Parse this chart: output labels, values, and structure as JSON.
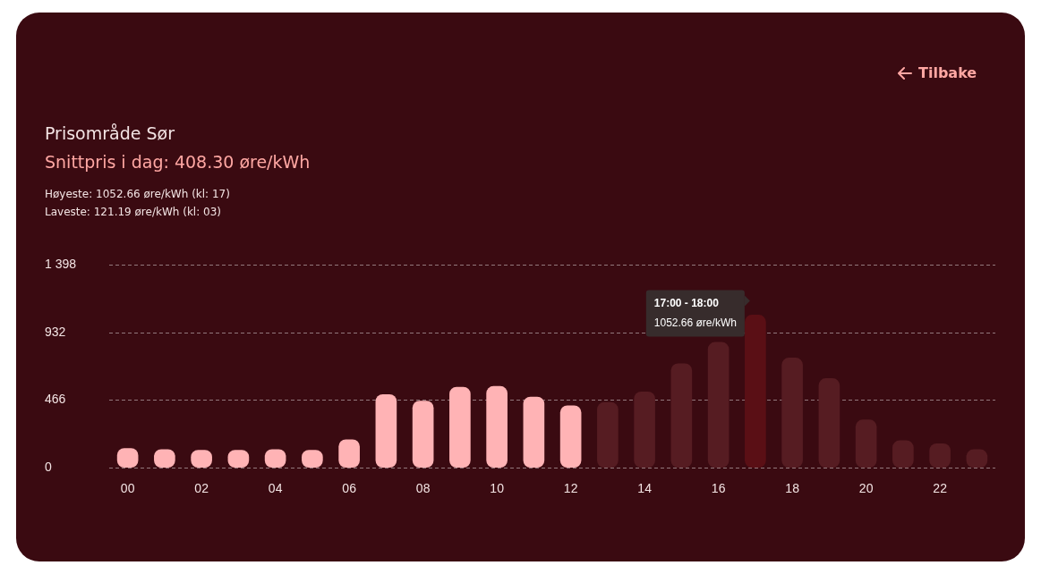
{
  "chart_data": {
    "type": "bar",
    "title": "Prisområde Sør",
    "subtitle": "Snittpris i dag: 408.30 øre/kWh",
    "categories": [
      "00",
      null,
      "02",
      null,
      "04",
      null,
      "06",
      null,
      "08",
      null,
      "10",
      null,
      "12",
      null,
      "14",
      null,
      "16",
      null,
      "18",
      null,
      "20",
      null,
      "22",
      null
    ],
    "values": [
      134,
      126,
      121,
      121.19,
      126,
      121,
      194,
      505,
      460,
      556,
      561,
      488,
      428,
      450,
      523,
      718,
      865,
      1052.66,
      757,
      615,
      330,
      187,
      166,
      125
    ],
    "colors": [
      "#ffb3b5",
      "#ffb3b5",
      "#ffb3b5",
      "#ffb3b5",
      "#ffb3b5",
      "#ffb3b5",
      "#ffb3b5",
      "#ffb3b5",
      "#ffb3b5",
      "#ffb3b5",
      "#ffb3b5",
      "#ffb3b5",
      "#ffb3b5",
      "#561c22",
      "#561c22",
      "#561c22",
      "#561c22",
      "#5a0f15",
      "#561c22",
      "#561c22",
      "#561c22",
      "#561c22",
      "#561c22",
      "#561c22"
    ],
    "ylim": [
      0,
      1398
    ],
    "yticks": [
      0,
      466,
      932,
      {
        "value": 1398,
        "label": "1 398"
      }
    ],
    "grid": "y",
    "legend": false,
    "annotations": [
      "Tilbake",
      "Høyeste: 1052.66 øre/kWh (kl: 17)",
      "Laveste: 121.19 øre/kWh (kl: 03)",
      "17:00 - 18:00",
      "1052.66 øre/kWh"
    ]
  }
}
